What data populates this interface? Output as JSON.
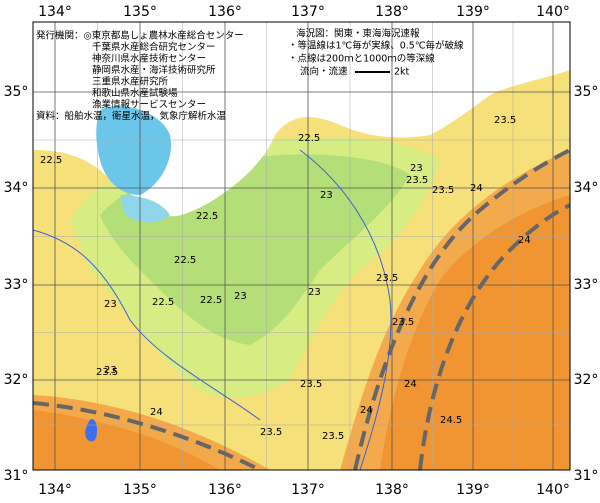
{
  "axes": {
    "top": [
      "134°",
      "135°",
      "136°",
      "137°",
      "138°",
      "139°",
      "140°"
    ],
    "bottom": [
      "134°",
      "135°",
      "136°",
      "137°",
      "138°",
      "139°",
      "140°"
    ],
    "left": [
      "35°",
      "34°",
      "33°",
      "32°",
      "31°"
    ],
    "right": [
      "35°",
      "34°",
      "33°",
      "32°",
      "31°"
    ]
  },
  "legend_left": [
    "発行機関：◎東京都島しょ農林水産総合センター",
    "千葉県水産総合研究センター",
    "神奈川県水産技術センター",
    "静岡県水産・海洋技術研究所",
    "三重県水産研究所",
    "和歌山県水産試験場",
    "漁業情報サービスセンター",
    "資料：船舶水温，衛星水温，気象庁解析水温"
  ],
  "legend_right": [
    "海況図：関東・東海海況速報",
    "・等温線は1℃毎が実線、0.5℃毎が破線",
    "・点線は200ｍと1000ｍの等深線",
    "流向・流速",
    "2kt"
  ],
  "contour_labels": [
    "22.5",
    "23",
    "22.5",
    "22.5",
    "22.5",
    "23",
    "22.5",
    "23",
    "23.5",
    "23",
    "23.5",
    "23.5",
    "24",
    "23.5",
    "24",
    "23.5",
    "23.5",
    "24",
    "24",
    "24",
    "24.5",
    "23.5",
    "23.5",
    "23",
    "22.5",
    "23",
    "23.5"
  ]
}
